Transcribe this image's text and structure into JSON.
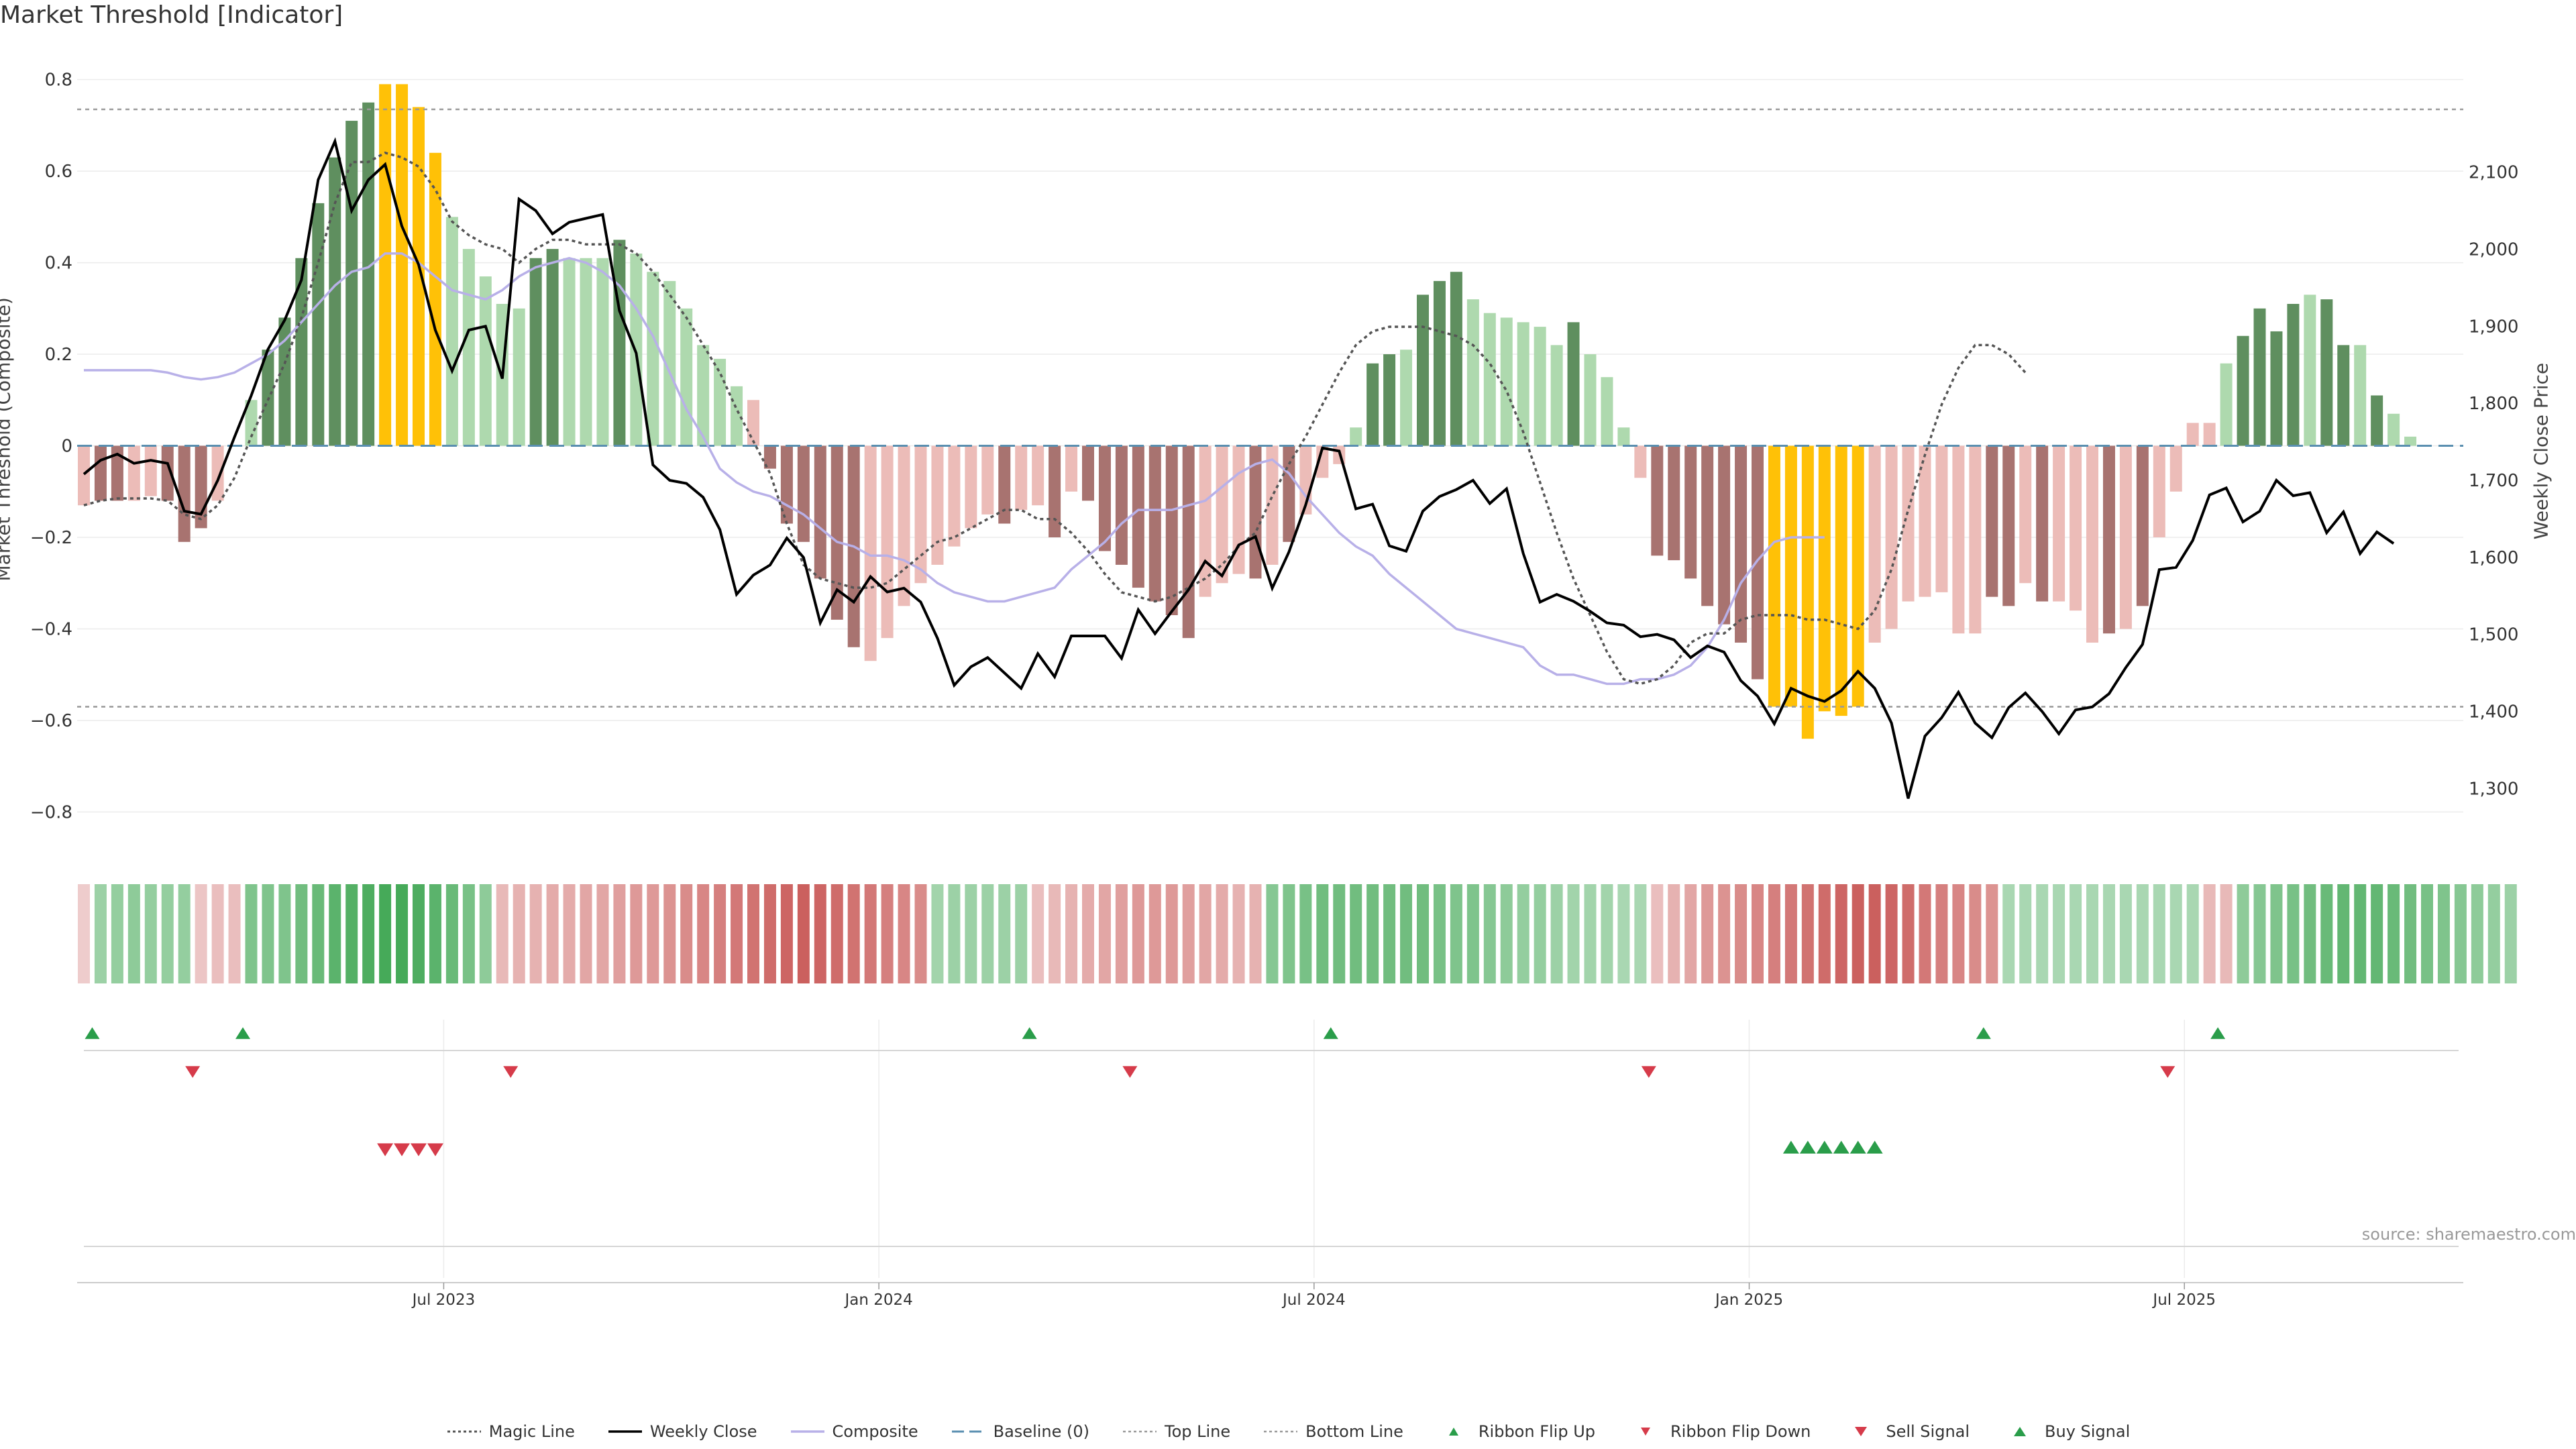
{
  "title": "Market Threshold [Indicator]",
  "source": "source: sharemaestro.com",
  "colors": {
    "strong_up": "#5f8f5f",
    "weak_up": "#aed9ae",
    "strong_down": "#a87370",
    "weak_down": "#ecbcb8",
    "extreme": "#ffc107",
    "weekly_close": "#000000",
    "composite": "#b8b0e8",
    "magic_line": "#555555",
    "baseline": "#5a8fb0",
    "threshold_line": "#999999",
    "buy": "#2a9d4a",
    "sell": "#d63b4a"
  },
  "legend": [
    {
      "key": "magic",
      "label": "Magic Line"
    },
    {
      "key": "weekly",
      "label": "Weekly Close"
    },
    {
      "key": "composite",
      "label": "Composite"
    },
    {
      "key": "baseline",
      "label": "Baseline (0)"
    },
    {
      "key": "top",
      "label": "Top Line"
    },
    {
      "key": "bottom",
      "label": "Bottom Line"
    },
    {
      "key": "flipup",
      "label": "Ribbon Flip Up"
    },
    {
      "key": "flipdown",
      "label": "Ribbon Flip Down"
    },
    {
      "key": "sell",
      "label": "Sell Signal"
    },
    {
      "key": "buy",
      "label": "Buy Signal"
    }
  ],
  "chart_data": {
    "type": "bar",
    "ylabel": "Market Threshold (Composite)",
    "y2label": "Weekly Close Price",
    "ylim": [
      -0.88,
      0.82
    ],
    "y2lim": [
      1222,
      2232
    ],
    "yticks": [
      -0.8,
      -0.6,
      -0.4,
      -0.2,
      0,
      0.2,
      0.4,
      0.6,
      0.8
    ],
    "ytick_labels": [
      "−0.8",
      "−0.6",
      "−0.4",
      "−0.2",
      "0",
      "0.2",
      "0.4",
      "0.6",
      "0.8"
    ],
    "y2ticks": [
      1300,
      1400,
      1500,
      1600,
      1700,
      1800,
      1900,
      2000,
      2100
    ],
    "y2tick_labels": [
      "1,300",
      "1,400",
      "1,500",
      "1,600",
      "1,700",
      "1,800",
      "1,900",
      "2,000",
      "2,100"
    ],
    "xtick_labels": [
      "Jul 2023",
      "Jan 2024",
      "Jul 2024",
      "Jan 2025",
      "Jul 2025"
    ],
    "xtick_index": [
      21.5,
      47.5,
      73.5,
      99.5,
      125.5
    ],
    "top_line": 0.735,
    "bottom_line": -0.57,
    "grid": true,
    "legend_position": "bottom",
    "bar_classes": [
      "weak_down",
      "strong_down",
      "strong_down",
      "weak_down",
      "weak_down",
      "strong_down",
      "strong_down",
      "strong_down",
      "weak_down",
      "weak_down",
      "weak_up",
      "strong_up",
      "strong_up",
      "strong_up",
      "strong_up",
      "strong_up",
      "strong_up",
      "strong_up",
      "extreme",
      "extreme",
      "extreme",
      "extreme",
      "weak_up",
      "weak_up",
      "weak_up",
      "weak_up",
      "weak_up",
      "strong_up",
      "strong_up",
      "weak_up",
      "weak_up",
      "weak_up",
      "strong_up",
      "weak_up",
      "weak_up",
      "weak_up",
      "weak_up",
      "weak_up",
      "weak_up",
      "weak_up",
      "weak_down",
      "strong_down",
      "strong_down",
      "strong_down",
      "strong_down",
      "strong_down",
      "strong_down",
      "weak_down",
      "weak_down",
      "weak_down",
      "weak_down",
      "weak_down",
      "weak_down",
      "weak_down",
      "weak_down",
      "strong_down",
      "weak_down",
      "weak_down",
      "strong_down",
      "weak_down",
      "strong_down",
      "strong_down",
      "strong_down",
      "strong_down",
      "strong_down",
      "strong_down",
      "strong_down",
      "weak_down",
      "weak_down",
      "weak_down",
      "strong_down",
      "weak_down",
      "strong_down",
      "weak_down",
      "weak_down",
      "weak_down",
      "weak_up",
      "strong_up",
      "strong_up",
      "weak_up",
      "strong_up",
      "strong_up",
      "strong_up",
      "weak_up",
      "weak_up",
      "weak_up",
      "weak_up",
      "weak_up",
      "weak_up",
      "strong_up",
      "weak_up",
      "weak_up",
      "weak_up",
      "weak_down",
      "strong_down",
      "strong_down",
      "strong_down",
      "strong_down",
      "strong_down",
      "strong_down",
      "strong_down",
      "extreme",
      "extreme",
      "extreme",
      "extreme",
      "extreme",
      "extreme",
      "weak_down",
      "weak_down",
      "weak_down",
      "weak_down",
      "weak_down",
      "weak_down",
      "weak_down",
      "strong_down",
      "strong_down",
      "weak_down",
      "strong_down",
      "weak_down",
      "weak_down",
      "weak_down",
      "strong_down",
      "weak_down",
      "strong_down",
      "weak_down",
      "weak_down",
      "weak_down",
      "weak_down",
      "weak_up",
      "strong_up",
      "strong_up",
      "strong_up",
      "strong_up",
      "weak_up",
      "strong_up",
      "strong_up",
      "weak_up",
      "strong_up",
      "weak_up",
      "weak_up",
      "weak_up"
    ],
    "bars": [
      -0.13,
      -0.12,
      -0.12,
      -0.12,
      -0.11,
      -0.12,
      -0.21,
      -0.18,
      -0.12,
      0.0,
      0.1,
      0.21,
      0.28,
      0.41,
      0.53,
      0.63,
      0.71,
      0.75,
      0.79,
      0.79,
      0.74,
      0.64,
      0.5,
      0.43,
      0.37,
      0.31,
      0.3,
      0.41,
      0.43,
      0.41,
      0.41,
      0.41,
      0.45,
      0.42,
      0.38,
      0.36,
      0.3,
      0.22,
      0.19,
      0.13,
      0.1,
      -0.05,
      -0.17,
      -0.21,
      -0.29,
      -0.38,
      -0.44,
      -0.47,
      -0.42,
      -0.35,
      -0.3,
      -0.26,
      -0.22,
      -0.18,
      -0.15,
      -0.17,
      -0.14,
      -0.13,
      -0.2,
      -0.1,
      -0.12,
      -0.23,
      -0.26,
      -0.31,
      -0.34,
      -0.37,
      -0.42,
      -0.33,
      -0.3,
      -0.28,
      -0.29,
      -0.26,
      -0.21,
      -0.15,
      -0.07,
      -0.04,
      0.04,
      0.18,
      0.2,
      0.21,
      0.33,
      0.36,
      0.38,
      0.32,
      0.29,
      0.28,
      0.27,
      0.26,
      0.22,
      0.27,
      0.2,
      0.15,
      0.04,
      -0.07,
      -0.24,
      -0.25,
      -0.29,
      -0.35,
      -0.39,
      -0.43,
      -0.51,
      -0.57,
      -0.57,
      -0.64,
      -0.58,
      -0.59,
      -0.57,
      -0.43,
      -0.4,
      -0.34,
      -0.33,
      -0.32,
      -0.41,
      -0.41,
      -0.33,
      -0.35,
      -0.3,
      -0.34,
      -0.34,
      -0.36,
      -0.43,
      -0.41,
      -0.4,
      -0.35,
      -0.2,
      -0.1,
      0.05,
      0.05,
      0.18,
      0.24,
      0.3,
      0.25,
      0.31,
      0.33,
      0.32,
      0.22,
      0.22,
      0.11,
      0.07,
      0.02
    ],
    "weekly_close": [
      1708,
      1726,
      1734,
      1722,
      1726,
      1722,
      1660,
      1656,
      1700,
      1756,
      1810,
      1870,
      1908,
      1960,
      2090,
      2140,
      2050,
      2090,
      2110,
      2030,
      1980,
      1895,
      1842,
      1895,
      1900,
      1832,
      2065,
      2050,
      2020,
      2035,
      2040,
      2045,
      1920,
      1865,
      1720,
      1700,
      1696,
      1678,
      1636,
      1552,
      1577,
      1590,
      1625,
      1600,
      1515,
      1558,
      1542,
      1575,
      1555,
      1560,
      1542,
      1495,
      1434,
      1458,
      1470,
      1450,
      1430,
      1475,
      1445,
      1498,
      1498,
      1498,
      1469,
      1532,
      1501,
      1530,
      1558,
      1595,
      1576,
      1616,
      1627,
      1560,
      1607,
      1668,
      1742,
      1738,
      1663,
      1669,
      1615,
      1608,
      1660,
      1679,
      1688,
      1700,
      1670,
      1689,
      1605,
      1542,
      1552,
      1543,
      1530,
      1515,
      1512,
      1497,
      1500,
      1493,
      1470,
      1485,
      1477,
      1440,
      1420,
      1384,
      1430,
      1420,
      1413,
      1427,
      1452,
      1430,
      1385,
      1287,
      1368,
      1392,
      1425,
      1385,
      1366,
      1405,
      1424,
      1400,
      1371,
      1402,
      1406,
      1423,
      1457,
      1487,
      1584,
      1587,
      1622,
      1681,
      1690,
      1646,
      1660,
      1700,
      1680,
      1684,
      1632,
      1659,
      1605,
      1633,
      1618
    ],
    "magic_line": [
      -0.13,
      -0.12,
      -0.115,
      -0.115,
      -0.115,
      -0.12,
      -0.15,
      -0.16,
      -0.13,
      -0.07,
      0.02,
      0.1,
      0.18,
      0.28,
      0.4,
      0.53,
      0.62,
      0.62,
      0.64,
      0.63,
      0.61,
      0.56,
      0.49,
      0.46,
      0.44,
      0.43,
      0.4,
      0.43,
      0.45,
      0.45,
      0.44,
      0.44,
      0.44,
      0.42,
      0.38,
      0.33,
      0.28,
      0.22,
      0.16,
      0.08,
      0.01,
      -0.06,
      -0.17,
      -0.26,
      -0.29,
      -0.3,
      -0.31,
      -0.31,
      -0.3,
      -0.27,
      -0.24,
      -0.21,
      -0.2,
      -0.18,
      -0.16,
      -0.14,
      -0.14,
      -0.16,
      -0.16,
      -0.19,
      -0.23,
      -0.28,
      -0.32,
      -0.33,
      -0.34,
      -0.33,
      -0.31,
      -0.29,
      -0.26,
      -0.22,
      -0.19,
      -0.11,
      -0.04,
      0.02,
      0.09,
      0.16,
      0.22,
      0.25,
      0.26,
      0.26,
      0.26,
      0.25,
      0.24,
      0.22,
      0.18,
      0.12,
      0.03,
      -0.08,
      -0.19,
      -0.29,
      -0.37,
      -0.45,
      -0.51,
      -0.52,
      -0.51,
      -0.48,
      -0.43,
      -0.41,
      -0.41,
      -0.38,
      -0.37,
      -0.37,
      -0.37,
      -0.38,
      -0.38,
      -0.39,
      -0.4,
      -0.36,
      -0.27,
      -0.14,
      -0.02,
      0.09,
      0.17,
      0.22,
      0.22,
      0.2,
      0.16
    ],
    "magic_line_start": 0,
    "composite": [
      0.165,
      0.165,
      0.165,
      0.165,
      0.165,
      0.16,
      0.15,
      0.145,
      0.15,
      0.16,
      0.18,
      0.2,
      0.23,
      0.27,
      0.31,
      0.35,
      0.38,
      0.39,
      0.42,
      0.42,
      0.4,
      0.37,
      0.34,
      0.33,
      0.32,
      0.34,
      0.37,
      0.39,
      0.4,
      0.41,
      0.4,
      0.38,
      0.35,
      0.3,
      0.24,
      0.16,
      0.08,
      0.02,
      -0.05,
      -0.08,
      -0.1,
      -0.11,
      -0.13,
      -0.15,
      -0.18,
      -0.21,
      -0.22,
      -0.24,
      -0.24,
      -0.25,
      -0.27,
      -0.3,
      -0.32,
      -0.33,
      -0.34,
      -0.34,
      -0.33,
      -0.32,
      -0.31,
      -0.27,
      -0.24,
      -0.21,
      -0.17,
      -0.14,
      -0.14,
      -0.14,
      -0.13,
      -0.12,
      -0.09,
      -0.06,
      -0.04,
      -0.03,
      -0.06,
      -0.11,
      -0.15,
      -0.19,
      -0.22,
      -0.24,
      -0.28,
      -0.31,
      -0.34,
      -0.37,
      -0.4,
      -0.41,
      -0.42,
      -0.43,
      -0.44,
      -0.48,
      -0.5,
      -0.5,
      -0.51,
      -0.52,
      -0.52,
      -0.51,
      -0.51,
      -0.5,
      -0.48,
      -0.44,
      -0.38,
      -0.3,
      -0.25,
      -0.21,
      -0.2,
      -0.2,
      -0.2
    ],
    "ribbon_values": [
      -0.1,
      0.4,
      0.45,
      0.5,
      0.45,
      0.45,
      0.45,
      -0.15,
      -0.2,
      -0.2,
      0.6,
      0.6,
      0.6,
      0.7,
      0.75,
      0.85,
      0.9,
      0.95,
      1.0,
      1.0,
      0.95,
      0.85,
      0.75,
      0.65,
      0.5,
      -0.25,
      -0.3,
      -0.3,
      -0.35,
      -0.35,
      -0.4,
      -0.4,
      -0.45,
      -0.5,
      -0.5,
      -0.55,
      -0.6,
      -0.65,
      -0.7,
      -0.75,
      -0.8,
      -0.85,
      -0.9,
      -0.95,
      -0.9,
      -0.85,
      -0.8,
      -0.75,
      -0.7,
      -0.65,
      -0.6,
      0.35,
      0.4,
      0.4,
      0.4,
      0.4,
      0.4,
      -0.2,
      -0.25,
      -0.3,
      -0.35,
      -0.4,
      -0.45,
      -0.5,
      -0.5,
      -0.5,
      -0.45,
      -0.4,
      -0.35,
      -0.3,
      -0.3,
      0.55,
      0.6,
      0.65,
      0.7,
      0.7,
      0.7,
      0.7,
      0.7,
      0.7,
      0.7,
      0.65,
      0.6,
      0.6,
      0.55,
      0.5,
      0.45,
      0.45,
      0.4,
      0.35,
      0.35,
      0.35,
      0.3,
      0.3,
      -0.2,
      -0.3,
      -0.4,
      -0.5,
      -0.55,
      -0.6,
      -0.65,
      -0.7,
      -0.75,
      -0.8,
      -0.85,
      -0.9,
      -0.95,
      -0.95,
      -0.9,
      -0.85,
      -0.75,
      -0.7,
      -0.65,
      -0.6,
      -0.55,
      0.3,
      0.3,
      0.3,
      0.3,
      0.3,
      0.3,
      0.3,
      0.3,
      0.3,
      0.3,
      0.3,
      0.3,
      -0.25,
      -0.25,
      0.5,
      0.55,
      0.6,
      0.65,
      0.7,
      0.75,
      0.8,
      0.8,
      0.8,
      0.75,
      0.7,
      0.65,
      0.6,
      0.55,
      0.5,
      0.45,
      0.4
    ],
    "ribbon_flip_up_index": [
      0.5,
      9.5,
      56.5,
      74.5,
      113.5,
      127.5
    ],
    "ribbon_flip_down_index": [
      6.5,
      25.5,
      62.5,
      93.5,
      124.5
    ],
    "sell_signal_index": [
      18,
      19,
      20,
      21
    ],
    "buy_signal_index": [
      102,
      103,
      104,
      105,
      106,
      107
    ]
  }
}
